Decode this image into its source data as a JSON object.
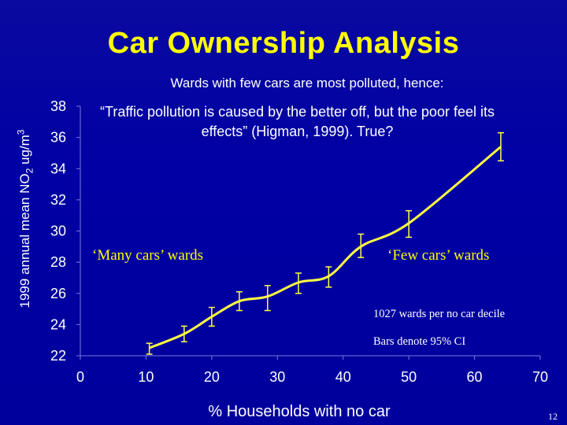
{
  "slide": {
    "title": "Car Ownership Analysis",
    "subtitle": "Wards with few cars are most polluted, hence:",
    "quote": "“Traffic pollution is caused by the better off, but the poor feel its effects” (Higman, 1999).   True?",
    "annotation_left": "‘Many cars’ wards",
    "annotation_right": "‘Few cars’ wards",
    "note_wards": "1027 wards per no car decile",
    "note_bars": "Bars denote 95% CI",
    "slide_number": "12"
  },
  "colors": {
    "background": "#0000a0",
    "title": "#ffff00",
    "line": "#ffff40",
    "text": "#ffffff"
  },
  "chart_data": {
    "type": "line",
    "xlabel": "% Households with no car",
    "ylabel_parts": {
      "pre": "1999 annual mean NO",
      "sub": "2",
      "mid": " ug/m",
      "sup": "3"
    },
    "xlim": [
      0,
      70
    ],
    "ylim": [
      22,
      38
    ],
    "xticks": [
      0,
      10,
      20,
      30,
      40,
      50,
      60,
      70
    ],
    "yticks": [
      22,
      24,
      26,
      28,
      30,
      32,
      34,
      36,
      38
    ],
    "grid": false,
    "series": [
      {
        "x": [
          10.5,
          15.8,
          20.0,
          24.2,
          28.5,
          33.2,
          37.8,
          42.7,
          50.0,
          64.0
        ],
        "y": [
          22.5,
          23.4,
          24.5,
          25.5,
          25.8,
          26.7,
          27.1,
          29.0,
          30.5,
          35.4
        ],
        "ci_low": [
          22.1,
          22.9,
          23.9,
          24.9,
          24.9,
          26.0,
          26.4,
          28.3,
          29.6,
          34.5
        ],
        "ci_high": [
          22.8,
          23.9,
          25.1,
          26.1,
          26.5,
          27.3,
          27.7,
          29.8,
          31.3,
          36.3
        ]
      }
    ]
  }
}
